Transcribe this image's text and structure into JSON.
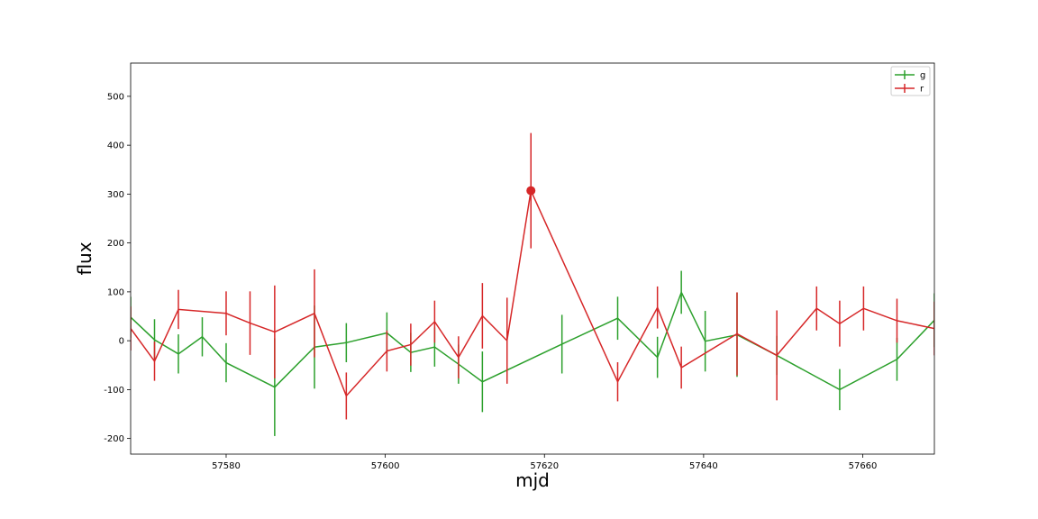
{
  "chart_data": {
    "type": "line",
    "xlabel": "mjd",
    "ylabel": "flux",
    "xlim": [
      57568,
      57669
    ],
    "ylim": [
      -232,
      568
    ],
    "xticks": [
      57580,
      57600,
      57620,
      57640,
      57660
    ],
    "yticks": [
      -200,
      -100,
      0,
      100,
      200,
      300,
      400,
      500
    ],
    "legend": {
      "position": "top-right",
      "entries": [
        "g",
        "r"
      ]
    },
    "grid": false,
    "series": [
      {
        "name": "g",
        "color": "#2ca02c",
        "points": [
          {
            "x": 57568.0,
            "y": 48,
            "err": 42
          },
          {
            "x": 57571.0,
            "y": 2,
            "err": 42
          },
          {
            "x": 57574.0,
            "y": -27,
            "err": 40
          },
          {
            "x": 57577.0,
            "y": 8,
            "err": 40
          },
          {
            "x": 57580.0,
            "y": -45,
            "err": 40
          },
          {
            "x": 57586.1,
            "y": -95,
            "err": 100
          },
          {
            "x": 57591.1,
            "y": -13,
            "err": 85
          },
          {
            "x": 57595.1,
            "y": -4,
            "err": 40
          },
          {
            "x": 57600.2,
            "y": 16,
            "err": 42
          },
          {
            "x": 57603.2,
            "y": -24,
            "err": 40
          },
          {
            "x": 57606.2,
            "y": -13,
            "err": 40
          },
          {
            "x": 57609.2,
            "y": -48,
            "err": 40
          },
          {
            "x": 57612.2,
            "y": -84,
            "err": 62
          },
          {
            "x": 57622.2,
            "y": -7,
            "err": 60
          },
          {
            "x": 57629.2,
            "y": 46,
            "err": 44
          },
          {
            "x": 57634.2,
            "y": -34,
            "err": 42
          },
          {
            "x": 57637.2,
            "y": 99,
            "err": 44
          },
          {
            "x": 57640.2,
            "y": -1,
            "err": 62
          },
          {
            "x": 57644.2,
            "y": 12,
            "err": 86
          },
          {
            "x": 57649.2,
            "y": -30,
            "err": 40
          },
          {
            "x": 57657.1,
            "y": -100,
            "err": 42
          },
          {
            "x": 57664.3,
            "y": -38,
            "err": 44
          },
          {
            "x": 57669.0,
            "y": 42,
            "err": 55
          }
        ]
      },
      {
        "name": "r",
        "color": "#d62728",
        "points": [
          {
            "x": 57568.0,
            "y": 25,
            "err": 45
          },
          {
            "x": 57571.0,
            "y": -42,
            "err": 40
          },
          {
            "x": 57574.0,
            "y": 64,
            "err": 40
          },
          {
            "x": 57580.0,
            "y": 56,
            "err": 45
          },
          {
            "x": 57583.0,
            "y": 36,
            "err": 65
          },
          {
            "x": 57586.1,
            "y": 18,
            "err": 95
          },
          {
            "x": 57591.1,
            "y": 56,
            "err": 90
          },
          {
            "x": 57595.1,
            "y": -113,
            "err": 48
          },
          {
            "x": 57600.2,
            "y": -21,
            "err": 42
          },
          {
            "x": 57603.2,
            "y": -8,
            "err": 43
          },
          {
            "x": 57606.2,
            "y": 39,
            "err": 43
          },
          {
            "x": 57609.2,
            "y": -34,
            "err": 43
          },
          {
            "x": 57612.2,
            "y": 51,
            "err": 67
          },
          {
            "x": 57615.3,
            "y": 0,
            "err": 88
          },
          {
            "x": 57618.3,
            "y": 307,
            "err": 118
          },
          {
            "x": 57629.2,
            "y": -84,
            "err": 40
          },
          {
            "x": 57634.2,
            "y": 68,
            "err": 43
          },
          {
            "x": 57637.2,
            "y": -55,
            "err": 43
          },
          {
            "x": 57644.2,
            "y": 14,
            "err": 85
          },
          {
            "x": 57649.2,
            "y": -30,
            "err": 92
          },
          {
            "x": 57654.2,
            "y": 66,
            "err": 45
          },
          {
            "x": 57657.1,
            "y": 35,
            "err": 47
          },
          {
            "x": 57660.1,
            "y": 66,
            "err": 45
          },
          {
            "x": 57664.3,
            "y": 41,
            "err": 45
          },
          {
            "x": 57669.0,
            "y": 25,
            "err": 55
          }
        ],
        "highlight": {
          "x": 57618.3,
          "y": 307
        }
      }
    ]
  }
}
